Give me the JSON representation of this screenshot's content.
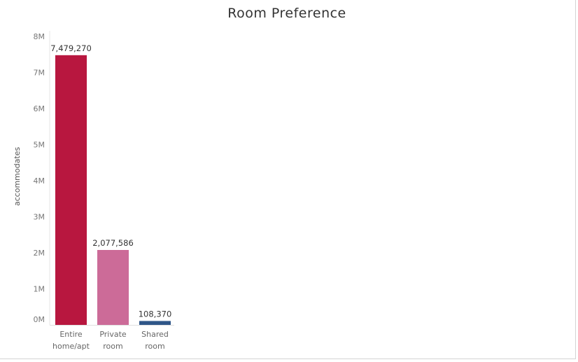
{
  "chart_data": {
    "type": "bar",
    "title": "Room Preference",
    "xlabel": "",
    "ylabel": "accommodates",
    "categories": [
      [
        "Entire",
        "home/apt"
      ],
      [
        "Private",
        "room"
      ],
      [
        "Shared",
        "room"
      ]
    ],
    "values": [
      7479270,
      2077586,
      108370
    ],
    "data_labels": [
      "7,479,270",
      "2,077,586",
      "108,370"
    ],
    "colors": [
      "#b8173f",
      "#cc6b98",
      "#2f5688"
    ],
    "ylim": [
      0,
      8000000
    ],
    "yticks": [
      0,
      1000000,
      2000000,
      3000000,
      4000000,
      5000000,
      6000000,
      7000000,
      8000000
    ],
    "ytick_labels": [
      "0M",
      "1M",
      "2M",
      "3M",
      "4M",
      "5M",
      "6M",
      "7M",
      "8M"
    ],
    "grid": false,
    "legend": "none"
  }
}
